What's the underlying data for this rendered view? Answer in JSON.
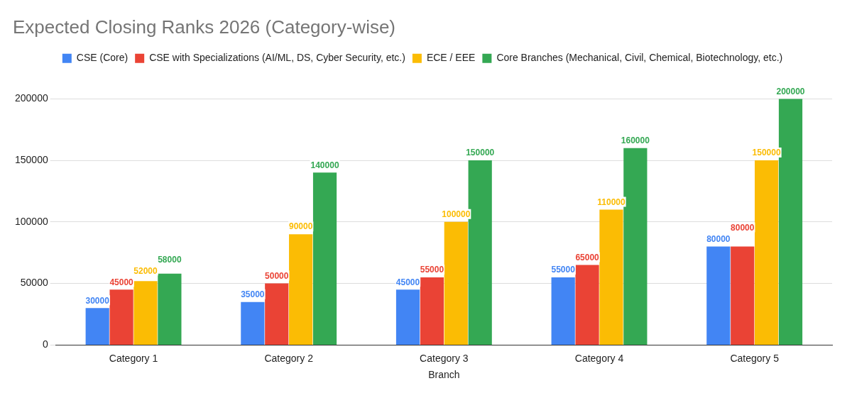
{
  "chart_data": {
    "type": "bar",
    "title": "Expected Closing Ranks 2026 (Category-wise)",
    "xlabel": "Branch",
    "categories": [
      "Category 1",
      "Category 2",
      "Category 3",
      "Category 4",
      "Category 5"
    ],
    "series": [
      {
        "name": "CSE (Core)",
        "color": "#4285f4",
        "values": [
          30000,
          35000,
          45000,
          55000,
          80000
        ]
      },
      {
        "name": "CSE with Specializations (AI/ML, DS, Cyber Security, etc.)",
        "color": "#ea4335",
        "values": [
          45000,
          50000,
          55000,
          65000,
          80000
        ]
      },
      {
        "name": "ECE / EEE",
        "color": "#fbbc04",
        "values": [
          52000,
          90000,
          100000,
          110000,
          150000
        ]
      },
      {
        "name": "Core Branches (Mechanical, Civil, Chemical, Biotechnology, etc.)",
        "color": "#34a853",
        "values": [
          58000,
          140000,
          150000,
          160000,
          200000
        ]
      }
    ],
    "ylim": [
      0,
      200000
    ],
    "yticks": [
      0,
      50000,
      100000,
      150000,
      200000
    ],
    "grid": "y",
    "legend": "top",
    "data_labels": true
  }
}
